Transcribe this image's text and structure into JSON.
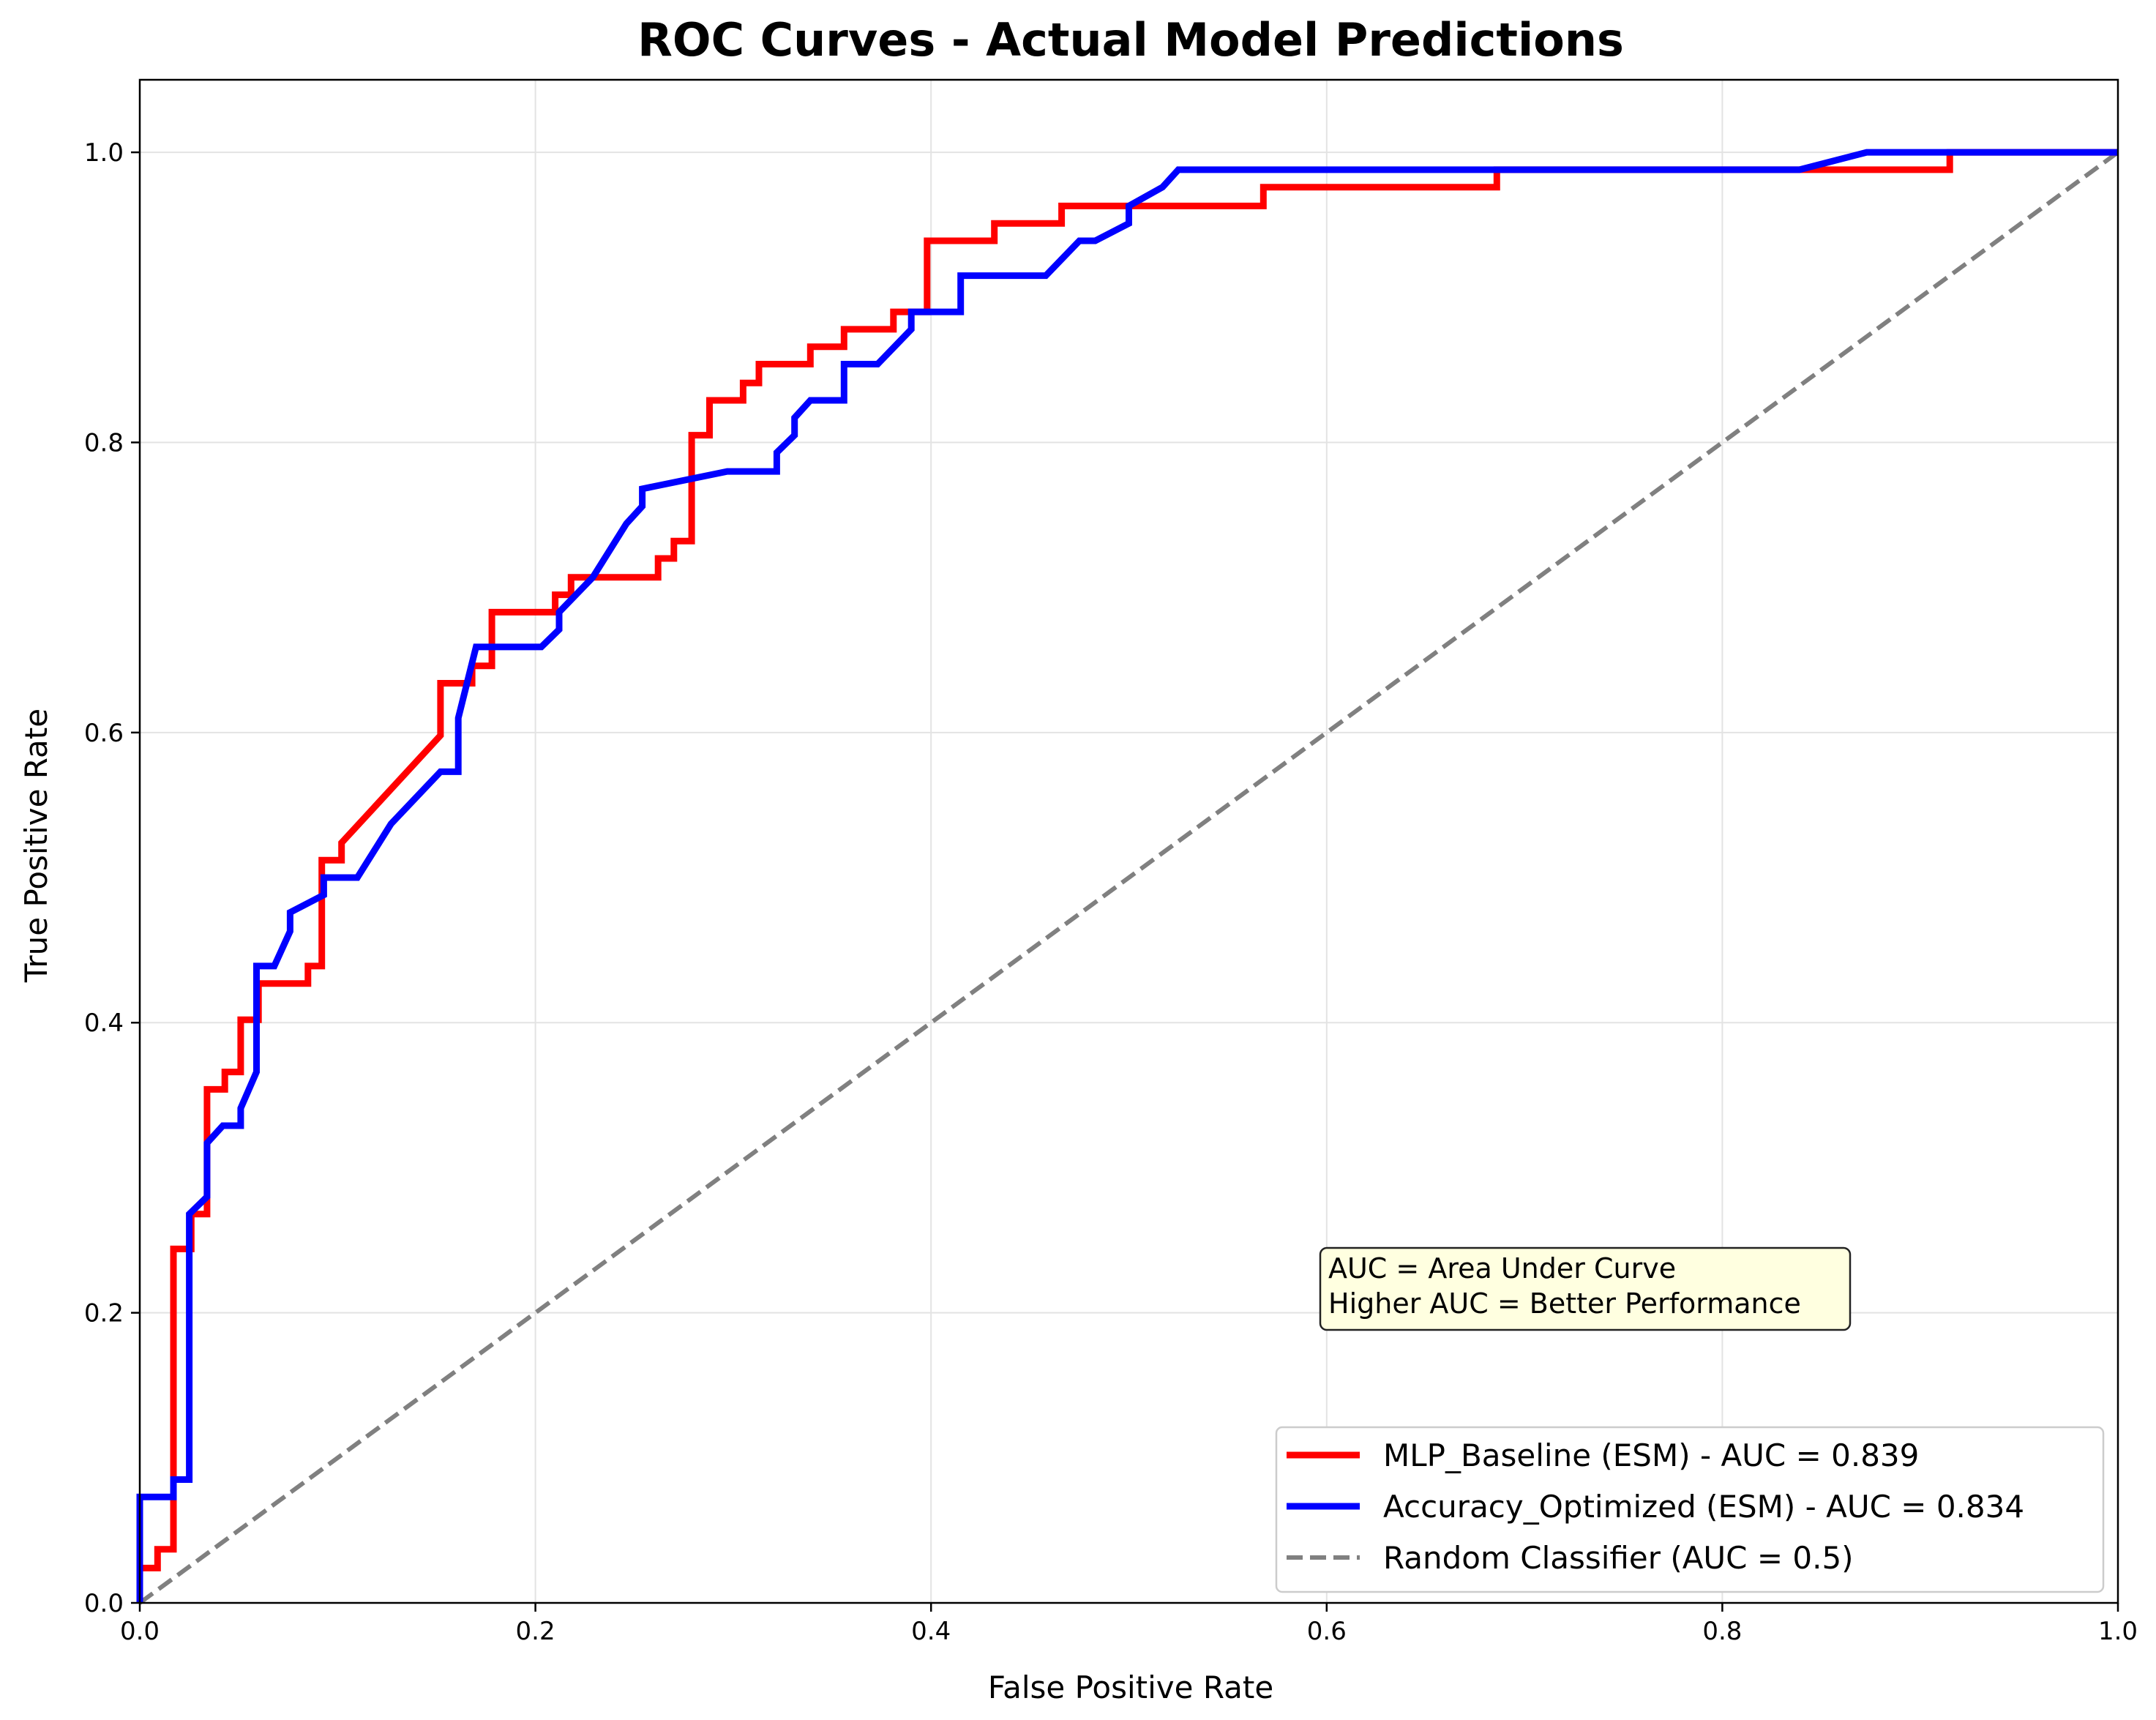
{
  "chart_data": {
    "type": "line",
    "title": "ROC Curves - Actual Model Predictions",
    "xlabel": "False Positive Rate",
    "ylabel": "True Positive Rate",
    "xlim": [
      0.0,
      1.0
    ],
    "ylim": [
      0.0,
      1.05
    ],
    "xticks": [
      "0.0",
      "0.2",
      "0.4",
      "0.6",
      "0.8",
      "1.0"
    ],
    "yticks": [
      "0.0",
      "0.2",
      "0.4",
      "0.6",
      "0.8",
      "1.0"
    ],
    "xtick_values": [
      0.0,
      0.2,
      0.4,
      0.6,
      0.8,
      1.0
    ],
    "ytick_values": [
      0.0,
      0.2,
      0.4,
      0.6,
      0.8,
      1.0
    ],
    "grid": true,
    "legend_position": "lower-right",
    "annotation": [
      "AUC = Area Under Curve",
      "Higher AUC = Better Performance"
    ],
    "series": [
      {
        "name": "MLP_Baseline (ESM) - AUC = 0.839",
        "color": "#ff0000",
        "style": "solid",
        "points": [
          [
            0.0,
            0.0
          ],
          [
            0.0,
            0.024
          ],
          [
            0.009,
            0.024
          ],
          [
            0.009,
            0.037
          ],
          [
            0.017,
            0.037
          ],
          [
            0.017,
            0.244
          ],
          [
            0.026,
            0.244
          ],
          [
            0.026,
            0.268
          ],
          [
            0.034,
            0.268
          ],
          [
            0.034,
            0.354
          ],
          [
            0.043,
            0.354
          ],
          [
            0.043,
            0.366
          ],
          [
            0.051,
            0.366
          ],
          [
            0.051,
            0.402
          ],
          [
            0.06,
            0.402
          ],
          [
            0.06,
            0.427
          ],
          [
            0.085,
            0.427
          ],
          [
            0.085,
            0.439
          ],
          [
            0.092,
            0.439
          ],
          [
            0.092,
            0.512
          ],
          [
            0.102,
            0.512
          ],
          [
            0.102,
            0.524
          ],
          [
            0.152,
            0.598
          ],
          [
            0.152,
            0.634
          ],
          [
            0.168,
            0.634
          ],
          [
            0.168,
            0.646
          ],
          [
            0.178,
            0.646
          ],
          [
            0.178,
            0.683
          ],
          [
            0.21,
            0.683
          ],
          [
            0.21,
            0.695
          ],
          [
            0.218,
            0.695
          ],
          [
            0.218,
            0.707
          ],
          [
            0.262,
            0.707
          ],
          [
            0.262,
            0.72
          ],
          [
            0.27,
            0.72
          ],
          [
            0.27,
            0.732
          ],
          [
            0.279,
            0.732
          ],
          [
            0.279,
            0.805
          ],
          [
            0.288,
            0.805
          ],
          [
            0.288,
            0.829
          ],
          [
            0.305,
            0.829
          ],
          [
            0.305,
            0.841
          ],
          [
            0.313,
            0.841
          ],
          [
            0.313,
            0.854
          ],
          [
            0.339,
            0.854
          ],
          [
            0.339,
            0.866
          ],
          [
            0.356,
            0.866
          ],
          [
            0.356,
            0.878
          ],
          [
            0.381,
            0.878
          ],
          [
            0.381,
            0.89
          ],
          [
            0.398,
            0.89
          ],
          [
            0.398,
            0.939
          ],
          [
            0.432,
            0.939
          ],
          [
            0.432,
            0.951
          ],
          [
            0.466,
            0.951
          ],
          [
            0.466,
            0.963
          ],
          [
            0.568,
            0.963
          ],
          [
            0.568,
            0.976
          ],
          [
            0.686,
            0.976
          ],
          [
            0.686,
            0.988
          ],
          [
            0.915,
            0.988
          ],
          [
            0.915,
            1.0
          ],
          [
            1.0,
            1.0
          ]
        ]
      },
      {
        "name": "Accuracy_Optimized (ESM) - AUC = 0.834",
        "color": "#0000ff",
        "style": "solid",
        "points": [
          [
            0.0,
            0.0
          ],
          [
            0.0,
            0.073
          ],
          [
            0.017,
            0.073
          ],
          [
            0.017,
            0.085
          ],
          [
            0.025,
            0.085
          ],
          [
            0.025,
            0.268
          ],
          [
            0.034,
            0.28
          ],
          [
            0.034,
            0.317
          ],
          [
            0.042,
            0.329
          ],
          [
            0.051,
            0.329
          ],
          [
            0.051,
            0.341
          ],
          [
            0.059,
            0.366
          ],
          [
            0.059,
            0.439
          ],
          [
            0.068,
            0.439
          ],
          [
            0.076,
            0.463
          ],
          [
            0.076,
            0.476
          ],
          [
            0.093,
            0.488
          ],
          [
            0.093,
            0.5
          ],
          [
            0.11,
            0.5
          ],
          [
            0.127,
            0.537
          ],
          [
            0.152,
            0.573
          ],
          [
            0.161,
            0.573
          ],
          [
            0.161,
            0.61
          ],
          [
            0.17,
            0.659
          ],
          [
            0.203,
            0.659
          ],
          [
            0.212,
            0.671
          ],
          [
            0.212,
            0.683
          ],
          [
            0.229,
            0.707
          ],
          [
            0.246,
            0.744
          ],
          [
            0.254,
            0.756
          ],
          [
            0.254,
            0.768
          ],
          [
            0.297,
            0.78
          ],
          [
            0.322,
            0.78
          ],
          [
            0.322,
            0.793
          ],
          [
            0.331,
            0.805
          ],
          [
            0.331,
            0.817
          ],
          [
            0.339,
            0.829
          ],
          [
            0.356,
            0.829
          ],
          [
            0.356,
            0.854
          ],
          [
            0.373,
            0.854
          ],
          [
            0.39,
            0.878
          ],
          [
            0.39,
            0.89
          ],
          [
            0.415,
            0.89
          ],
          [
            0.415,
            0.915
          ],
          [
            0.458,
            0.915
          ],
          [
            0.475,
            0.939
          ],
          [
            0.483,
            0.939
          ],
          [
            0.5,
            0.951
          ],
          [
            0.5,
            0.963
          ],
          [
            0.517,
            0.976
          ],
          [
            0.525,
            0.988
          ],
          [
            0.839,
            0.988
          ],
          [
            0.873,
            1.0
          ],
          [
            1.0,
            1.0
          ]
        ]
      },
      {
        "name": "Random Classifier (AUC = 0.5)",
        "color": "#808080",
        "style": "dashed",
        "points": [
          [
            0.0,
            0.0
          ],
          [
            1.0,
            1.0
          ]
        ]
      }
    ]
  }
}
